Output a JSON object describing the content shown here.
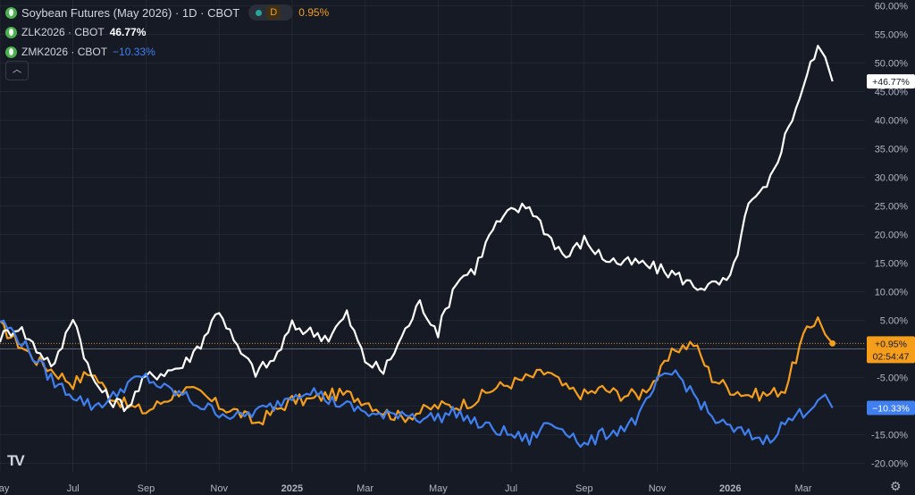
{
  "legend": {
    "title": "Soybean Futures (May 2026) · 1D · CBOT",
    "badge": "D",
    "main_change": "0.95%",
    "series1_label": "ZLK2026 · CBOT",
    "series1_change": "46.77%",
    "series2_label": "ZMK2026 · CBOT",
    "series2_change": "−10.33%",
    "collapse_icon": "chevron-up-icon"
  },
  "badges": {
    "zl": "+46.77%",
    "zs": "+0.95%",
    "countdown": "02:54:47",
    "zm": "−10.33%"
  },
  "colors": {
    "zs": "#f59e1b",
    "zl": "#ffffff",
    "zm": "#3f7ff0",
    "background": "#161a25",
    "grid": "#2a2e39",
    "text": "#b2b5be"
  },
  "chart_data": {
    "type": "line",
    "ylabel_format": "percent",
    "ylim": [
      -21.5,
      61
    ],
    "y_ticks": [
      "60.00%",
      "55.00%",
      "50.00%",
      "45.00%",
      "40.00%",
      "35.00%",
      "30.00%",
      "25.00%",
      "20.00%",
      "15.00%",
      "10.00%",
      "5.00%",
      "0.00%",
      "-5.00%",
      "-10.00%",
      "-15.00%",
      "-20.00%"
    ],
    "y_tick_values": [
      60,
      55,
      50,
      45,
      40,
      35,
      30,
      25,
      20,
      15,
      10,
      5,
      0,
      -5,
      -10,
      -15,
      -20
    ],
    "x_tick_labels": [
      "May",
      "Jul",
      "Sep",
      "Nov",
      "2025",
      "Mar",
      "May",
      "Jul",
      "Sep",
      "Nov",
      "2026",
      "Mar"
    ],
    "x_tick_index": [
      0,
      20,
      40,
      60,
      80,
      100,
      120,
      140,
      160,
      180,
      200,
      220
    ],
    "x_range": [
      0,
      232
    ],
    "baseline": 0,
    "series": [
      {
        "name": "Soybean Futures (May 2026)",
        "key": "zs",
        "x": [
          0,
          5,
          10,
          15,
          20,
          25,
          30,
          35,
          40,
          45,
          50,
          55,
          60,
          65,
          70,
          75,
          80,
          85,
          90,
          95,
          100,
          105,
          110,
          115,
          120,
          125,
          130,
          135,
          140,
          145,
          150,
          155,
          160,
          165,
          170,
          175,
          180,
          185,
          190,
          195,
          200,
          205,
          210,
          215,
          220,
          224,
          226,
          228
        ],
        "values": [
          4,
          1,
          -2,
          -4,
          -6,
          -4,
          -8,
          -10,
          -11,
          -9,
          -7,
          -8,
          -10,
          -11,
          -13,
          -11,
          -9,
          -9,
          -8,
          -8,
          -9,
          -11,
          -12,
          -11,
          -10,
          -10,
          -9,
          -7,
          -6,
          -5,
          -4,
          -7,
          -8,
          -7,
          -8,
          -8,
          -5,
          0,
          1,
          -5,
          -7,
          -8,
          -8,
          -7,
          2,
          5.5,
          2.5,
          0.95
        ]
      },
      {
        "name": "ZLK2026",
        "key": "zl",
        "x": [
          0,
          5,
          10,
          15,
          20,
          25,
          30,
          35,
          40,
          45,
          50,
          55,
          60,
          65,
          70,
          75,
          80,
          85,
          90,
          95,
          100,
          105,
          110,
          115,
          120,
          125,
          130,
          135,
          140,
          145,
          150,
          155,
          160,
          165,
          170,
          175,
          180,
          185,
          190,
          195,
          200,
          205,
          210,
          215,
          220,
          224,
          226,
          228
        ],
        "values": [
          2,
          4,
          0,
          -3,
          6,
          -5,
          -9,
          -10,
          -5,
          -4,
          -3,
          1,
          7,
          0,
          -4,
          -2,
          4,
          3,
          2,
          6,
          -2,
          -4,
          2,
          8,
          3,
          12,
          14,
          21,
          24,
          25,
          20,
          16,
          19,
          16,
          15,
          15,
          14,
          13,
          11,
          11,
          12,
          25,
          28,
          37,
          46,
          53,
          51,
          46.77
        ]
      },
      {
        "name": "ZMK2026",
        "key": "zm",
        "x": [
          0,
          5,
          10,
          15,
          20,
          25,
          30,
          35,
          40,
          45,
          50,
          55,
          60,
          65,
          70,
          75,
          80,
          85,
          90,
          95,
          100,
          105,
          110,
          115,
          120,
          125,
          130,
          135,
          140,
          145,
          150,
          155,
          160,
          165,
          170,
          175,
          180,
          185,
          190,
          195,
          200,
          205,
          210,
          215,
          220,
          224,
          226,
          228
        ],
        "values": [
          5,
          2,
          -2,
          -6,
          -8,
          -10,
          -9,
          -6,
          -5,
          -7,
          -8,
          -10,
          -11,
          -12,
          -11,
          -10,
          -8,
          -7,
          -9,
          -10,
          -11,
          -12,
          -11,
          -12,
          -12,
          -11,
          -13,
          -14,
          -15,
          -16,
          -13,
          -14,
          -17,
          -15,
          -14,
          -12,
          -6,
          -4,
          -8,
          -12,
          -14,
          -15,
          -16,
          -13,
          -11,
          -9,
          -8,
          -10.33
        ]
      }
    ]
  }
}
